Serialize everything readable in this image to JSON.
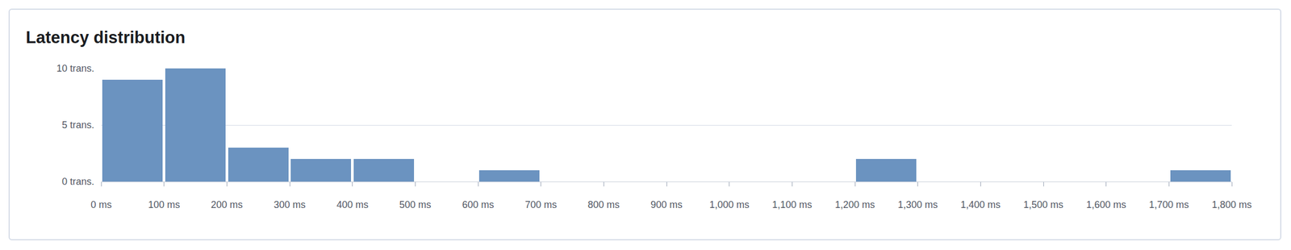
{
  "chart_data": {
    "type": "histogram",
    "title": "Latency distribution",
    "bins": [
      0,
      100,
      200,
      300,
      400,
      500,
      600,
      700,
      800,
      900,
      1000,
      1100,
      1200,
      1300,
      1400,
      1500,
      1600,
      1700,
      1800
    ],
    "values": [
      9,
      10,
      3,
      2,
      2,
      0,
      1,
      0,
      0,
      0,
      0,
      0,
      2,
      0,
      0,
      0,
      0,
      1
    ],
    "color": "#6b93c0",
    "xlim": [
      0,
      1800
    ],
    "xticks": [
      {
        "value": 0,
        "label": "0 ms"
      },
      {
        "value": 100,
        "label": "100 ms"
      },
      {
        "value": 200,
        "label": "200 ms"
      },
      {
        "value": 300,
        "label": "300 ms"
      },
      {
        "value": 400,
        "label": "400 ms"
      },
      {
        "value": 500,
        "label": "500 ms"
      },
      {
        "value": 600,
        "label": "600 ms"
      },
      {
        "value": 700,
        "label": "700 ms"
      },
      {
        "value": 800,
        "label": "800 ms"
      },
      {
        "value": 900,
        "label": "900 ms"
      },
      {
        "value": 1000,
        "label": "1,000 ms"
      },
      {
        "value": 1100,
        "label": "1,100 ms"
      },
      {
        "value": 1200,
        "label": "1,200 ms"
      },
      {
        "value": 1300,
        "label": "1,300 ms"
      },
      {
        "value": 1400,
        "label": "1,400 ms"
      },
      {
        "value": 1500,
        "label": "1,500 ms"
      },
      {
        "value": 1600,
        "label": "1,600 ms"
      },
      {
        "value": 1700,
        "label": "1,700 ms"
      },
      {
        "value": 1800,
        "label": "1,800 ms"
      }
    ],
    "ylim": [
      0,
      10
    ],
    "yticks": [
      {
        "value": 0,
        "label": "0 trans."
      },
      {
        "value": 5,
        "label": "5 trans."
      },
      {
        "value": 10,
        "label": "10 trans."
      }
    ],
    "grid": true
  }
}
